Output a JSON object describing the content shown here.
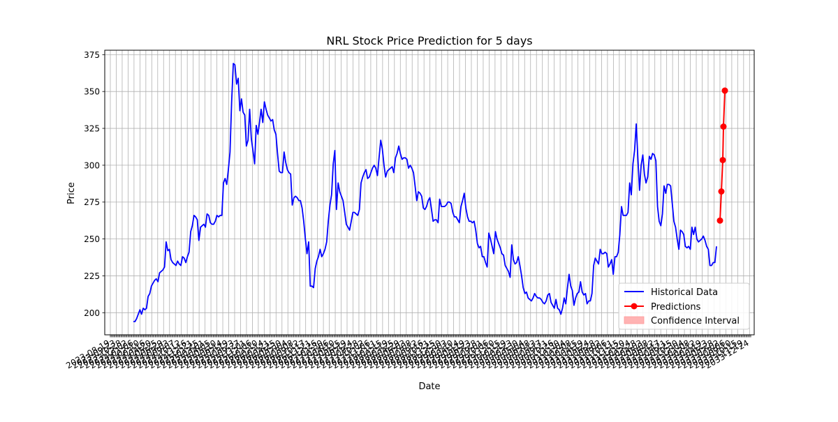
{
  "chart_data": {
    "type": "line",
    "title": "NRL Stock Price Prediction for 5 days",
    "xlabel": "Date",
    "ylabel": "Price",
    "ylim": [
      185,
      378
    ],
    "yticks": [
      200,
      225,
      250,
      275,
      300,
      325,
      350,
      375
    ],
    "grid": true,
    "legend_position": "lower-right",
    "legend": [
      "Historical Data",
      "Predictions",
      "Confidence Interval"
    ],
    "series": [
      {
        "name": "Historical Data",
        "color": "#0000ff",
        "values": [
          194,
          194,
          196,
          199,
          202,
          199,
          203,
          202,
          203,
          211,
          213,
          218,
          220,
          222,
          223,
          221,
          227,
          228,
          229,
          231,
          248,
          242,
          243,
          236,
          234,
          233,
          232,
          235,
          233,
          232,
          238,
          237,
          234,
          238,
          241,
          255,
          259,
          266,
          265,
          263,
          249,
          258,
          259,
          260,
          258,
          267,
          266,
          261,
          260,
          260,
          262,
          266,
          265,
          266,
          266,
          288,
          291,
          287,
          297,
          309,
          343,
          369,
          368,
          355,
          359,
          337,
          345,
          336,
          334,
          313,
          317,
          338,
          318,
          310,
          301,
          327,
          321,
          329,
          338,
          329,
          343,
          338,
          334,
          332,
          330,
          331,
          324,
          321,
          308,
          296,
          295,
          295,
          309,
          302,
          297,
          295,
          294,
          273,
          278,
          279,
          278,
          276,
          276,
          271,
          262,
          250,
          240,
          248,
          218,
          218,
          217,
          230,
          235,
          238,
          243,
          238,
          240,
          243,
          248,
          262,
          273,
          280,
          301,
          310,
          270,
          288,
          282,
          279,
          276,
          268,
          260,
          258,
          256,
          262,
          268,
          268,
          267,
          266,
          270,
          288,
          292,
          295,
          297,
          291,
          292,
          295,
          298,
          300,
          298,
          293,
          305,
          317,
          311,
          300,
          292,
          296,
          297,
          298,
          299,
          295,
          305,
          308,
          313,
          308,
          304,
          305,
          305,
          304,
          298,
          300,
          298,
          295,
          286,
          276,
          282,
          281,
          279,
          271,
          270,
          272,
          276,
          278,
          270,
          262,
          263,
          263,
          261,
          277,
          272,
          272,
          272,
          273,
          275,
          275,
          274,
          268,
          265,
          265,
          263,
          261,
          272,
          276,
          281,
          271,
          265,
          262,
          262,
          261,
          262,
          256,
          247,
          244,
          245,
          238,
          238,
          234,
          231,
          254,
          250,
          245,
          240,
          255,
          250,
          247,
          244,
          240,
          239,
          232,
          230,
          228,
          224,
          246,
          236,
          233,
          234,
          238,
          232,
          225,
          217,
          213,
          214,
          210,
          209,
          208,
          210,
          213,
          211,
          210,
          210,
          209,
          207,
          206,
          208,
          212,
          213,
          207,
          205,
          203,
          209,
          203,
          202,
          199,
          203,
          210,
          206,
          217,
          226,
          218,
          215,
          205,
          210,
          213,
          214,
          221,
          214,
          212,
          213,
          206,
          208,
          208,
          213,
          232,
          237,
          235,
          233,
          243,
          240,
          240,
          241,
          240,
          231,
          233,
          236,
          226,
          238,
          238,
          241,
          253,
          272,
          266,
          266,
          266,
          268,
          288,
          280,
          301,
          310,
          328,
          305,
          283,
          300,
          307,
          294,
          288,
          292,
          306,
          304,
          308,
          307,
          303,
          272,
          262,
          259,
          267,
          286,
          281,
          287,
          287,
          286,
          274,
          262,
          258,
          250,
          243,
          256,
          255,
          253,
          245,
          244,
          245,
          243,
          258,
          253,
          258,
          250,
          248,
          249,
          250,
          252,
          249,
          245,
          243,
          232,
          232,
          234,
          234,
          245
        ]
      },
      {
        "name": "Predictions",
        "color": "#ff0000",
        "values": [
          262.5,
          282.2,
          303.5,
          326.2,
          350.6
        ]
      },
      {
        "name": "Confidence Interval",
        "color": "#ffb3b3",
        "values": []
      }
    ],
    "x_tick_labels": [
      "2023-08-19",
      "2023-08-26",
      "2023-09-02",
      "2023-09-09",
      "2023-09-16",
      "2023-09-23",
      "2023-09-30",
      "2023-10-07",
      "2023-10-14",
      "2023-10-21",
      "2023-10-28",
      "2023-11-04",
      "2023-11-11",
      "2023-11-18",
      "2023-11-25",
      "2023-12-02",
      "2023-12-09",
      "2023-12-16",
      "2023-12-23",
      "2023-12-30",
      "2024-01-06",
      "2024-01-13",
      "2024-01-20",
      "2024-01-27",
      "2024-02-03",
      "2024-02-10",
      "2024-02-17",
      "2024-02-24",
      "2024-03-02",
      "2024-03-09",
      "2024-03-16",
      "2024-03-23",
      "2024-03-30",
      "2024-04-06",
      "2024-04-13",
      "2024-04-20",
      "2024-04-27",
      "2024-05-04",
      "2024-05-11",
      "2024-05-18",
      "2024-05-25",
      "2024-06-01",
      "2024-06-08",
      "2024-06-15",
      "2024-06-22",
      "2024-06-29",
      "2024-07-06",
      "2024-07-13",
      "2024-07-20",
      "2024-07-27",
      "2024-08-03",
      "2024-08-10",
      "2024-08-17",
      "2024-08-24",
      "2024-08-31",
      "2024-09-07",
      "2024-09-14",
      "2024-09-21",
      "2024-09-28",
      "2024-10-05",
      "2024-10-12",
      "2024-10-19",
      "2024-10-26",
      "2024-11-02",
      "2024-11-09",
      "2024-11-16",
      "2024-11-23",
      "2024-11-30",
      "2024-12-07",
      "2024-12-14",
      "2024-12-21",
      "2024-12-28",
      "2025-01-04",
      "2025-01-11",
      "2025-01-18",
      "2025-01-25",
      "2025-02-01",
      "2025-02-08",
      "2025-02-15",
      "2025-02-22",
      "2025-03-01",
      "2025-03-08",
      "2025-03-15",
      "2025-03-22",
      "2025-03-29",
      "2025-04-05",
      "2025-04-12",
      "2025-04-19",
      "2025-04-26",
      "2025-05-03",
      "2025-05-10",
      "2025-05-17",
      "2025-05-24",
      "2025-05-31",
      "2025-06-07",
      "2025-06-14",
      "2025-06-21",
      "2025-06-28",
      "2025-07-05",
      "2025-07-12",
      "2025-07-19",
      "2025-07-26",
      "2025-08-02",
      "2025-08-09",
      "2025-08-16",
      "2025-08-23",
      "2025-08-30",
      "2025-09-06",
      "2025-09-13",
      "2025-09-20",
      "2025-09-27",
      "2025-10-04",
      "2025-10-11",
      "2025-10-18",
      "2025-10-25",
      "2025-11-01",
      "2025-11-08",
      "2025-11-15",
      "2025-11-22",
      "2025-11-29",
      "2025-12-06",
      "2025-12-13",
      "2025-12-20",
      "2025-12-27",
      "2026-01-03",
      "2026-01-10",
      "2026-01-17",
      "2026-01-24",
      "2026-01-31",
      "2026-02-07",
      "2026-02-14",
      "2026-02-21",
      "2026-02-28",
      "2026-03-07",
      "2026-03-14",
      "2026-03-21",
      "2026-03-28",
      "2026-04-04",
      "2026-04-11",
      "2026-04-18",
      "2026-04-25",
      "2026-05-02",
      "2026-05-09",
      "2026-05-16",
      "2026-05-23",
      "2026-05-30",
      "2026-06-06",
      "2026-06-13",
      "2026-06-20",
      "2026-06-27",
      "2026-07-04",
      "2026-07-11",
      "2026-07-18",
      "2026-07-25",
      "2026-08-01",
      "2026-08-08",
      "2026-08-15",
      "2026-08-22",
      "2026-08-29",
      "2026-09-05",
      "2026-09-12",
      "2026-09-19",
      "2026-09-26",
      "2026-10-03",
      "2026-10-10",
      "2026-10-17",
      "2026-10-24",
      "2026-10-31",
      "2026-11-07",
      "2026-11-14",
      "2026-11-21",
      "2026-11-28",
      "2026-12-05",
      "2026-12-12",
      "2026-12-19",
      "2026-12-26",
      "2027-01-02",
      "2027-01-09",
      "2027-01-16",
      "2027-01-23",
      "2027-01-30",
      "2027-02-06",
      "2027-02-13",
      "2027-02-20",
      "2027-02-27",
      "2027-03-06",
      "2027-03-13",
      "2027-03-20",
      "2027-03-27",
      "2027-04-03",
      "2027-04-10",
      "2027-04-17",
      "2027-04-24",
      "2027-05-01",
      "2027-05-08",
      "2027-05-15",
      "2027-05-22",
      "2027-05-29",
      "2027-06-05",
      "2027-06-12",
      "2027-06-19",
      "2027-06-26",
      "2027-07-03",
      "2027-07-10",
      "2027-07-17",
      "2027-07-24",
      "2027-07-31",
      "2027-08-07",
      "2027-08-14",
      "2027-08-21",
      "2027-08-28",
      "2027-09-04",
      "2027-09-11",
      "2027-09-18",
      "2027-09-25",
      "2027-10-02",
      "2027-10-09",
      "2027-10-16",
      "2027-10-23",
      "2027-10-30",
      "2027-11-06",
      "2027-11-13",
      "2027-11-20",
      "2027-11-27",
      "2027-12-04",
      "2027-12-11",
      "2027-12-18",
      "2027-12-25",
      "2028-01-01",
      "2028-01-08",
      "2028-01-15",
      "2028-01-22",
      "2028-01-29",
      "2028-02-05",
      "2028-02-12",
      "2028-02-19",
      "2028-02-26",
      "2028-03-04",
      "2028-03-11",
      "2028-03-18",
      "2028-03-25",
      "2028-04-01",
      "2028-04-08",
      "2028-04-15",
      "2028-04-22",
      "2028-04-29",
      "2028-05-06",
      "2028-05-13",
      "2028-05-20",
      "2028-05-27",
      "2028-06-03",
      "2028-06-10",
      "2028-06-17",
      "2028-06-24",
      "2028-07-01",
      "2028-07-08",
      "2028-07-15",
      "2028-07-22",
      "2028-07-29",
      "2028-08-05",
      "2028-08-12",
      "2028-08-19",
      "2028-08-26",
      "2028-09-02",
      "2028-09-09",
      "2028-09-16",
      "2028-09-23",
      "2028-09-30",
      "2028-10-07",
      "2028-10-14",
      "2028-10-21",
      "2028-10-28",
      "2028-11-04",
      "2028-11-11",
      "2028-11-18",
      "2028-11-25",
      "2028-12-02",
      "2028-12-09",
      "2028-12-16",
      "2028-12-23",
      "2028-12-30",
      "2029-01-06",
      "2029-01-13",
      "2029-01-20",
      "2029-01-27",
      "2029-02-03",
      "2029-02-10",
      "2029-02-17",
      "2029-02-24",
      "2029-03-03",
      "2029-03-10",
      "2029-03-17",
      "2029-03-24",
      "2029-03-31",
      "2029-04-07",
      "2029-04-14",
      "2029-04-21",
      "2029-04-28",
      "2029-05-05",
      "2029-05-12",
      "2029-05-19",
      "2029-05-26",
      "2029-06-02",
      "2029-06-09",
      "2029-06-16",
      "2029-06-23",
      "2029-06-30",
      "2029-07-07",
      "2029-07-14",
      "2029-07-21",
      "2029-07-28",
      "2029-08-04",
      "2029-08-11",
      "2029-08-18",
      "2029-08-25",
      "2029-09-01",
      "2029-09-08",
      "2029-09-15",
      "2029-09-22",
      "2029-09-29",
      "2029-10-06",
      "2029-10-13",
      "2029-10-20",
      "2029-10-27",
      "2029-11-03",
      "2029-11-10",
      "2029-11-17",
      "2029-11-24",
      "2029-12-01",
      "2029-12-08",
      "2029-12-15",
      "2029-12-22",
      "2029-12-29",
      "2030-01-05",
      "2030-01-12",
      "2030-01-19",
      "2030-01-26",
      "2030-02-02",
      "2030-02-09",
      "2030-02-16",
      "2030-02-23",
      "2030-03-02",
      "2030-03-09",
      "2030-03-16",
      "2030-03-23",
      "2030-03-30",
      "2030-04-06",
      "2030-04-13",
      "2030-04-20",
      "2030-04-27",
      "2030-05-04",
      "2030-05-11",
      "2030-05-18",
      "2030-05-25",
      "2030-06-01",
      "2030-06-08",
      "2030-06-15",
      "2030-06-22",
      "2030-06-29",
      "2030-07-06",
      "2030-07-13",
      "2030-07-20",
      "2030-07-27",
      "2030-08-03",
      "2030-08-10",
      "2030-08-17",
      "2030-08-24",
      "2030-08-31",
      "2030-09-07",
      "2030-09-14",
      "2030-09-21",
      "2030-09-28",
      "2030-10-05",
      "2030-10-12",
      "2030-10-19",
      "2030-10-26",
      "2030-11-02",
      "2030-11-09",
      "2030-11-16",
      "2030-11-23",
      "2030-11-30",
      "2030-12-07",
      "2030-12-14",
      "2030-12-21",
      "2030-12-28",
      "2031-01-04",
      "2031-01-11",
      "2031-01-18",
      "2031-01-25",
      "2031-02-01",
      "2031-02-08",
      "2031-02-15",
      "2031-02-22",
      "2031-03-01",
      "2031-03-08",
      "2031-03-15",
      "2031-03-22",
      "2031-03-29",
      "2031-04-05",
      "2031-04-12",
      "2031-04-19",
      "2031-04-26",
      "2031-05-03",
      "2031-05-10",
      "2031-05-17",
      "2031-05-24",
      "2031-05-31",
      "2031-06-07",
      "2031-06-14",
      "2031-06-21",
      "2031-06-28",
      "2031-07-05",
      "2031-07-12",
      "2031-07-19",
      "2031-07-26",
      "2031-08-02",
      "2031-08-09",
      "2031-08-16",
      "2031-08-23",
      "2031-08-30",
      "2031-09-06",
      "2031-09-13",
      "2031-09-20",
      "2031-09-27",
      "2031-10-04",
      "2031-10-11",
      "2031-10-18",
      "2031-10-25",
      "2031-11-01",
      "2031-11-08",
      "2031-11-15",
      "2031-11-22",
      "2031-11-29",
      "2031-12-06",
      "2031-12-13",
      "2031-12-20",
      "2031-12-27",
      "2032-01-03",
      "2032-01-10",
      "2032-01-17",
      "2032-01-24",
      "2032-01-31",
      "2032-02-07",
      "2032-02-14",
      "2032-02-21",
      "2032-02-28",
      "2032-03-06",
      "2032-03-13",
      "2032-03-20",
      "2032-03-27",
      "2032-04-03",
      "2032-04-10",
      "2032-04-17",
      "2032-04-24",
      "2032-05-01",
      "2032-05-08",
      "2032-05-15",
      "2032-05-22",
      "2032-05-29",
      "2032-06-05",
      "2032-06-12",
      "2032-06-19",
      "2032-06-26",
      "2032-07-03",
      "2032-07-10",
      "2032-07-17",
      "2032-07-24",
      "2032-07-31",
      "2032-08-07",
      "2032-08-14",
      "2032-08-21",
      "2032-08-28",
      "2032-09-04",
      "2032-09-11",
      "2032-09-18",
      "2032-09-25",
      "2032-10-02",
      "2032-10-09",
      "2032-10-16",
      "2032-10-23",
      "2032-10-30",
      "2032-11-06",
      "2032-11-13",
      "2032-11-20",
      "2032-11-27",
      "2032-12-04",
      "2032-12-11",
      "2032-12-18",
      "2032-12-25",
      "2033-01-01",
      "2033-01-08",
      "2033-01-15",
      "2033-01-22",
      "2033-01-29",
      "2033-02-05",
      "2033-02-12",
      "2033-02-19",
      "2033-02-26",
      "2033-03-05",
      "2033-03-12",
      "2033-03-19",
      "2033-03-26",
      "2033-04-02",
      "2033-04-09",
      "2033-04-16",
      "2033-04-23",
      "2033-04-30",
      "2033-05-07",
      "2033-05-14",
      "2033-05-21",
      "2033-05-28",
      "2033-06-04",
      "2033-06-11",
      "2033-06-18",
      "2033-06-25",
      "2033-07-02",
      "2033-07-09",
      "2033-07-16",
      "2033-07-23",
      "2033-07-30",
      "2033-08-06",
      "2033-08-13",
      "2033-08-20",
      "2033-08-27",
      "2033-09-03",
      "2033-09-10",
      "2033-09-17",
      "2033-09-24",
      "2033-10-01",
      "2033-10-08",
      "2033-10-15",
      "2033-10-22",
      "2033-10-29",
      "2033-11-05",
      "2033-11-12",
      "2033-11-19",
      "2033-11-26",
      "2033-12-03",
      "2033-12-10",
      "2033-12-17",
      "2033-12-24",
      "2033-12-31"
    ]
  }
}
